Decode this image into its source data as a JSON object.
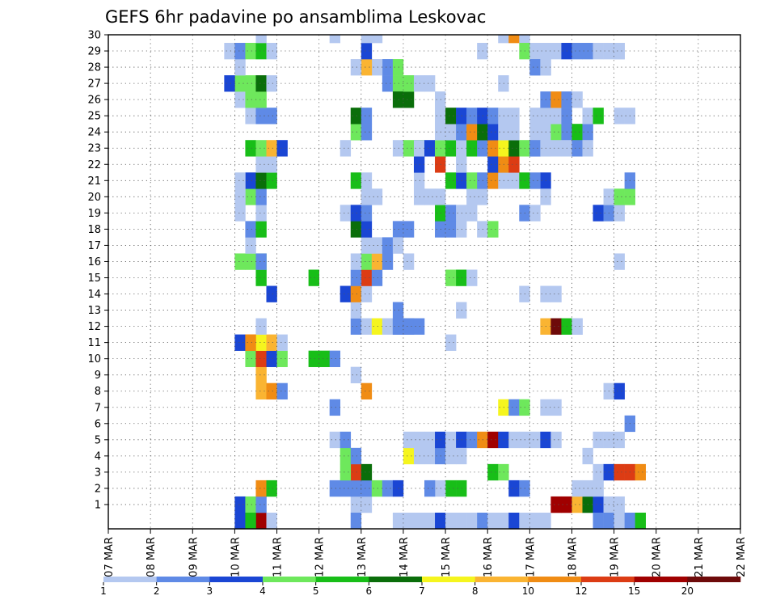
{
  "chart_data": {
    "type": "heatmap",
    "title": "GEFS 6hr padavine po ansamblima Leskovac",
    "x_tick_labels": [
      "07 MAR",
      "08 MAR",
      "09 MAR",
      "10 MAR",
      "11 MAR",
      "12 MAR",
      "13 MAR",
      "14 MAR",
      "15 MAR",
      "16 MAR",
      "17 MAR",
      "18 MAR",
      "19 MAR",
      "20 MAR",
      "21 MAR",
      "22 MAR"
    ],
    "y_tick_labels": [
      "1",
      "2",
      "3",
      "4",
      "5",
      "6",
      "7",
      "8",
      "9",
      "10",
      "11",
      "12",
      "13",
      "14",
      "15",
      "16",
      "17",
      "18",
      "19",
      "20",
      "21",
      "22",
      "23",
      "24",
      "25",
      "26",
      "27",
      "28",
      "29",
      "30"
    ],
    "x_range": [
      "07 MAR 00z",
      "22 MAR 00z"
    ],
    "y_range": [
      0,
      30
    ],
    "grid": true,
    "color_scale": {
      "labels": [
        "1",
        "2",
        "3",
        "4",
        "5",
        "6",
        "7",
        "8",
        "10",
        "12",
        "15",
        "20"
      ],
      "colors": [
        "#b4c8f0",
        "#5f8ae6",
        "#1a46d4",
        "#6ee85c",
        "#18be18",
        "#0a6e0a",
        "#f5f51e",
        "#fab432",
        "#f08c14",
        "#dc3c14",
        "#a00000",
        "#6e0a0a"
      ]
    },
    "cells_note": "each cell: [forecast step (6h from 07 MAR 00z), ensemble member, color class 1-12]",
    "cells": [
      [
        12,
        1,
        3
      ],
      [
        13,
        1,
        4
      ],
      [
        14,
        0,
        11
      ],
      [
        15,
        0,
        1
      ],
      [
        14,
        1,
        2
      ],
      [
        14,
        2,
        9
      ],
      [
        15,
        2,
        5
      ],
      [
        14,
        8,
        8
      ],
      [
        15,
        8,
        9
      ],
      [
        16,
        8,
        2
      ],
      [
        14,
        9,
        8
      ],
      [
        13,
        10,
        4
      ],
      [
        14,
        10,
        10
      ],
      [
        15,
        10,
        3
      ],
      [
        16,
        10,
        4
      ],
      [
        12,
        11,
        3
      ],
      [
        13,
        11,
        9
      ],
      [
        14,
        11,
        7
      ],
      [
        15,
        11,
        8
      ],
      [
        16,
        11,
        1
      ],
      [
        14,
        12,
        1
      ],
      [
        13,
        11,
        9
      ],
      [
        14,
        15,
        5
      ],
      [
        15,
        14,
        3
      ],
      [
        14,
        16,
        4
      ],
      [
        13,
        16,
        4
      ],
      [
        12,
        16,
        4
      ],
      [
        13,
        17,
        1
      ],
      [
        14,
        16,
        2
      ],
      [
        13,
        18,
        2
      ],
      [
        14,
        18,
        5
      ],
      [
        12,
        19,
        1
      ],
      [
        14,
        19,
        1
      ],
      [
        13,
        20,
        4
      ],
      [
        14,
        20,
        2
      ],
      [
        12,
        20,
        1
      ],
      [
        13,
        21,
        3
      ],
      [
        14,
        21,
        6
      ],
      [
        15,
        21,
        5
      ],
      [
        12,
        21,
        1
      ],
      [
        14,
        22,
        1
      ],
      [
        15,
        22,
        1
      ],
      [
        13,
        23,
        5
      ],
      [
        14,
        23,
        4
      ],
      [
        15,
        23,
        8
      ],
      [
        16,
        23,
        3
      ],
      [
        13,
        25,
        1
      ],
      [
        14,
        25,
        2
      ],
      [
        15,
        25,
        2
      ],
      [
        12,
        26,
        1
      ],
      [
        13,
        26,
        4
      ],
      [
        14,
        26,
        4
      ],
      [
        12,
        27,
        4
      ],
      [
        13,
        27,
        4
      ],
      [
        14,
        27,
        6
      ],
      [
        15,
        27,
        1
      ],
      [
        11,
        27,
        3
      ],
      [
        12,
        28,
        1
      ],
      [
        11,
        29,
        1
      ],
      [
        12,
        29,
        2
      ],
      [
        13,
        29,
        4
      ],
      [
        14,
        29,
        5
      ],
      [
        15,
        29,
        1
      ],
      [
        14,
        30,
        1
      ],
      [
        12,
        0,
        3
      ],
      [
        13,
        0,
        5
      ],
      [
        19,
        10,
        5
      ],
      [
        20,
        10,
        5
      ],
      [
        21,
        10,
        2
      ],
      [
        19,
        15,
        5
      ],
      [
        23,
        9,
        1
      ],
      [
        24,
        8,
        9
      ],
      [
        23,
        1,
        1
      ],
      [
        24,
        1,
        1
      ],
      [
        24,
        2,
        2
      ],
      [
        25,
        2,
        4
      ],
      [
        26,
        2,
        2
      ],
      [
        27,
        2,
        3
      ],
      [
        23,
        2,
        2
      ],
      [
        22,
        2,
        2
      ],
      [
        21,
        2,
        2
      ],
      [
        23,
        3,
        10
      ],
      [
        24,
        3,
        6
      ],
      [
        22,
        3,
        4
      ],
      [
        22,
        4,
        4
      ],
      [
        23,
        4,
        2
      ],
      [
        21,
        5,
        1
      ],
      [
        22,
        5,
        2
      ],
      [
        21,
        7,
        2
      ],
      [
        23,
        12,
        2
      ],
      [
        24,
        12,
        1
      ],
      [
        25,
        12,
        7
      ],
      [
        26,
        12,
        1
      ],
      [
        27,
        12,
        2
      ],
      [
        28,
        12,
        2
      ],
      [
        23,
        13,
        1
      ],
      [
        22,
        14,
        3
      ],
      [
        23,
        14,
        9
      ],
      [
        24,
        14,
        1
      ],
      [
        24,
        15,
        10
      ],
      [
        25,
        15,
        2
      ],
      [
        23,
        15,
        2
      ],
      [
        24,
        16,
        4
      ],
      [
        25,
        16,
        8
      ],
      [
        26,
        16,
        2
      ],
      [
        23,
        16,
        1
      ],
      [
        24,
        17,
        1
      ],
      [
        25,
        17,
        1
      ],
      [
        26,
        17,
        2
      ],
      [
        23,
        18,
        6
      ],
      [
        24,
        18,
        3
      ],
      [
        27,
        18,
        2
      ],
      [
        22,
        19,
        1
      ],
      [
        23,
        19,
        3
      ],
      [
        24,
        19,
        2
      ],
      [
        24,
        20,
        1
      ],
      [
        25,
        20,
        1
      ],
      [
        23,
        21,
        5
      ],
      [
        24,
        21,
        1
      ],
      [
        22,
        23,
        1
      ],
      [
        23,
        24,
        4
      ],
      [
        24,
        24,
        2
      ],
      [
        23,
        25,
        6
      ],
      [
        24,
        25,
        2
      ],
      [
        26,
        27,
        2
      ],
      [
        27,
        27,
        4
      ],
      [
        28,
        27,
        1
      ],
      [
        26,
        28,
        2
      ],
      [
        27,
        28,
        4
      ],
      [
        25,
        28,
        1
      ],
      [
        24,
        28,
        8
      ],
      [
        23,
        28,
        1
      ],
      [
        24,
        29,
        3
      ],
      [
        25,
        30,
        1
      ],
      [
        24,
        30,
        1
      ],
      [
        21,
        30,
        1
      ],
      [
        27,
        26,
        6
      ],
      [
        28,
        26,
        6
      ],
      [
        28,
        27,
        4
      ],
      [
        29,
        27,
        1
      ],
      [
        27,
        23,
        1
      ],
      [
        28,
        23,
        4
      ],
      [
        29,
        23,
        5
      ],
      [
        28,
        18,
        2
      ],
      [
        27,
        17,
        1
      ],
      [
        28,
        16,
        1
      ],
      [
        27,
        12,
        2
      ],
      [
        28,
        12,
        2
      ],
      [
        29,
        12,
        2
      ],
      [
        27,
        13,
        2
      ],
      [
        23,
        0,
        2
      ],
      [
        27,
        0,
        1
      ],
      [
        28,
        0,
        1
      ],
      [
        29,
        0,
        1
      ],
      [
        30,
        0,
        1
      ],
      [
        31,
        0,
        3
      ],
      [
        32,
        0,
        1
      ],
      [
        33,
        0,
        1
      ],
      [
        34,
        0,
        1
      ],
      [
        35,
        0,
        2
      ],
      [
        36,
        0,
        1
      ],
      [
        37,
        0,
        1
      ],
      [
        38,
        0,
        3
      ],
      [
        39,
        0,
        1
      ],
      [
        40,
        0,
        1
      ],
      [
        28,
        4,
        7
      ],
      [
        29,
        4,
        1
      ],
      [
        30,
        4,
        1
      ],
      [
        31,
        4,
        2
      ],
      [
        32,
        4,
        1
      ],
      [
        28,
        5,
        1
      ],
      [
        29,
        5,
        1
      ],
      [
        30,
        5,
        1
      ],
      [
        31,
        5,
        3
      ],
      [
        32,
        5,
        1
      ],
      [
        33,
        5,
        3
      ],
      [
        34,
        5,
        2
      ],
      [
        35,
        5,
        9
      ],
      [
        36,
        5,
        11
      ],
      [
        37,
        5,
        3
      ],
      [
        38,
        5,
        1
      ],
      [
        39,
        5,
        1
      ],
      [
        40,
        5,
        1
      ],
      [
        41,
        5,
        3
      ],
      [
        42,
        5,
        1
      ],
      [
        33,
        4,
        1
      ],
      [
        36,
        3,
        5
      ],
      [
        37,
        3,
        4
      ],
      [
        38,
        2,
        3
      ],
      [
        39,
        2,
        2
      ],
      [
        32,
        2,
        5
      ],
      [
        33,
        2,
        5
      ],
      [
        31,
        2,
        1
      ],
      [
        30,
        2,
        2
      ],
      [
        37,
        7,
        7
      ],
      [
        38,
        7,
        2
      ],
      [
        39,
        7,
        4
      ],
      [
        41,
        7,
        1
      ],
      [
        42,
        7,
        1
      ],
      [
        32,
        11,
        1
      ],
      [
        33,
        13,
        1
      ],
      [
        32,
        15,
        4
      ],
      [
        33,
        15,
        5
      ],
      [
        34,
        15,
        1
      ],
      [
        31,
        18,
        2
      ],
      [
        32,
        18,
        2
      ],
      [
        33,
        18,
        1
      ],
      [
        35,
        18,
        1
      ],
      [
        36,
        18,
        4
      ],
      [
        31,
        19,
        5
      ],
      [
        32,
        19,
        2
      ],
      [
        33,
        19,
        1
      ],
      [
        34,
        19,
        1
      ],
      [
        29,
        20,
        1
      ],
      [
        30,
        20,
        1
      ],
      [
        31,
        20,
        1
      ],
      [
        34,
        20,
        1
      ],
      [
        35,
        20,
        1
      ],
      [
        29,
        21,
        1
      ],
      [
        32,
        21,
        5
      ],
      [
        33,
        21,
        3
      ],
      [
        34,
        21,
        4
      ],
      [
        35,
        21,
        2
      ],
      [
        36,
        21,
        9
      ],
      [
        37,
        21,
        1
      ],
      [
        38,
        21,
        1
      ],
      [
        29,
        22,
        3
      ],
      [
        31,
        22,
        10
      ],
      [
        33,
        22,
        1
      ],
      [
        36,
        22,
        3
      ],
      [
        37,
        22,
        9
      ],
      [
        38,
        22,
        10
      ],
      [
        29,
        23,
        1
      ],
      [
        30,
        23,
        3
      ],
      [
        31,
        23,
        4
      ],
      [
        32,
        23,
        5
      ],
      [
        33,
        23,
        1
      ],
      [
        34,
        23,
        5
      ],
      [
        35,
        23,
        2
      ],
      [
        36,
        23,
        9
      ],
      [
        37,
        23,
        7
      ],
      [
        38,
        23,
        6
      ],
      [
        39,
        23,
        4
      ],
      [
        40,
        23,
        3
      ],
      [
        41,
        23,
        1
      ],
      [
        31,
        24,
        1
      ],
      [
        32,
        24,
        1
      ],
      [
        33,
        24,
        2
      ],
      [
        34,
        24,
        9
      ],
      [
        35,
        24,
        6
      ],
      [
        36,
        24,
        3
      ],
      [
        37,
        24,
        1
      ],
      [
        38,
        24,
        1
      ],
      [
        31,
        25,
        1
      ],
      [
        32,
        25,
        6
      ],
      [
        33,
        25,
        3
      ],
      [
        34,
        25,
        2
      ],
      [
        35,
        25,
        3
      ],
      [
        36,
        25,
        2
      ],
      [
        37,
        25,
        1
      ],
      [
        38,
        25,
        1
      ],
      [
        31,
        26,
        1
      ],
      [
        30,
        27,
        1
      ],
      [
        37,
        27,
        1
      ],
      [
        40,
        28,
        1
      ],
      [
        41,
        28,
        1
      ],
      [
        35,
        29,
        1
      ],
      [
        37,
        30,
        1
      ],
      [
        38,
        30,
        9
      ],
      [
        39,
        30,
        1
      ],
      [
        40,
        24,
        1
      ],
      [
        41,
        24,
        1
      ],
      [
        42,
        24,
        4
      ],
      [
        43,
        24,
        2
      ],
      [
        44,
        24,
        5
      ],
      [
        45,
        24,
        2
      ],
      [
        40,
        25,
        1
      ],
      [
        41,
        25,
        1
      ],
      [
        42,
        25,
        1
      ],
      [
        43,
        25,
        2
      ],
      [
        45,
        25,
        1
      ],
      [
        41,
        26,
        2
      ],
      [
        42,
        26,
        9
      ],
      [
        43,
        26,
        2
      ],
      [
        44,
        26,
        1
      ],
      [
        40,
        23,
        2
      ],
      [
        41,
        23,
        1
      ],
      [
        42,
        23,
        1
      ],
      [
        43,
        23,
        1
      ],
      [
        44,
        23,
        2
      ],
      [
        45,
        23,
        1
      ],
      [
        41,
        21,
        3
      ],
      [
        39,
        21,
        5
      ],
      [
        40,
        21,
        2
      ],
      [
        39,
        19,
        2
      ],
      [
        40,
        19,
        1
      ],
      [
        41,
        20,
        1
      ],
      [
        39,
        29,
        4
      ],
      [
        40,
        29,
        1
      ],
      [
        41,
        29,
        1
      ],
      [
        42,
        29,
        1
      ],
      [
        43,
        29,
        3
      ],
      [
        44,
        29,
        2
      ],
      [
        45,
        29,
        2
      ],
      [
        46,
        29,
        1
      ],
      [
        48,
        29,
        1
      ],
      [
        40,
        28,
        2
      ],
      [
        41,
        28,
        1
      ],
      [
        39,
        14,
        1
      ],
      [
        41,
        14,
        1
      ],
      [
        42,
        14,
        1
      ],
      [
        41,
        12,
        8
      ],
      [
        42,
        12,
        12
      ],
      [
        43,
        12,
        5
      ],
      [
        44,
        12,
        1
      ],
      [
        42,
        1,
        11
      ],
      [
        43,
        1,
        11
      ],
      [
        44,
        1,
        8
      ],
      [
        45,
        1,
        6
      ],
      [
        46,
        1,
        3
      ],
      [
        47,
        1,
        1
      ],
      [
        48,
        1,
        1
      ],
      [
        44,
        2,
        1
      ],
      [
        45,
        2,
        1
      ],
      [
        46,
        2,
        1
      ],
      [
        46,
        3,
        1
      ],
      [
        47,
        3,
        3
      ],
      [
        48,
        3,
        10
      ],
      [
        49,
        3,
        10
      ],
      [
        50,
        3,
        9
      ],
      [
        45,
        4,
        1
      ],
      [
        46,
        5,
        1
      ],
      [
        47,
        5,
        1
      ],
      [
        48,
        5,
        1
      ],
      [
        49,
        6,
        2
      ],
      [
        47,
        8,
        1
      ],
      [
        48,
        8,
        3
      ],
      [
        44,
        12,
        1
      ],
      [
        48,
        16,
        1
      ],
      [
        46,
        19,
        3
      ],
      [
        47,
        19,
        2
      ],
      [
        48,
        19,
        1
      ],
      [
        47,
        20,
        1
      ],
      [
        48,
        20,
        4
      ],
      [
        49,
        20,
        4
      ],
      [
        49,
        21,
        2
      ],
      [
        48,
        25,
        1
      ],
      [
        46,
        25,
        5
      ],
      [
        49,
        25,
        1
      ],
      [
        48,
        29,
        1
      ],
      [
        47,
        29,
        1
      ],
      [
        46,
        0,
        2
      ],
      [
        47,
        0,
        2
      ],
      [
        48,
        0,
        1
      ],
      [
        49,
        0,
        2
      ],
      [
        50,
        0,
        5
      ],
      [
        41,
        0,
        1
      ]
    ]
  }
}
